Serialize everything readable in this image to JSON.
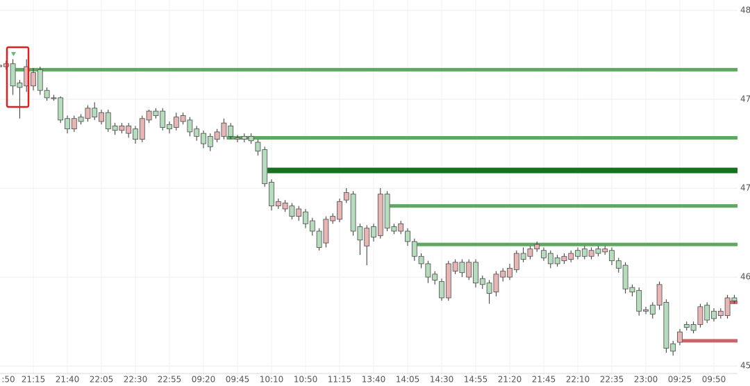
{
  "chart_data": {
    "type": "candlestick",
    "categories": [
      ":50",
      null,
      null,
      null,
      null,
      "21:15",
      null,
      null,
      null,
      null,
      "21:40",
      null,
      null,
      null,
      null,
      "22:05",
      null,
      null,
      null,
      null,
      "22:30",
      null,
      null,
      null,
      null,
      "22:55",
      null,
      null,
      null,
      null,
      "09:20",
      null,
      null,
      null,
      null,
      "09:45",
      null,
      null,
      null,
      null,
      "10:10",
      null,
      null,
      null,
      null,
      "10:50",
      null,
      null,
      null,
      null,
      "11:15",
      null,
      null,
      null,
      null,
      "13:40",
      null,
      null,
      null,
      null,
      "14:05",
      null,
      null,
      null,
      null,
      "14:30",
      null,
      null,
      null,
      null,
      "14:55",
      null,
      null,
      null,
      null,
      "21:20",
      null,
      null,
      null,
      null,
      "21:45",
      null,
      null,
      null,
      null,
      "22:10",
      null,
      null,
      null,
      null,
      "22:35",
      null,
      null,
      null,
      null,
      "23:00",
      null,
      null,
      null,
      null,
      "09:25",
      null,
      null,
      null,
      null,
      "09:50",
      null,
      null,
      null
    ],
    "open": [
      4782,
      4784,
      4769,
      4768,
      4782,
      4778,
      4766,
      4761,
      4761,
      4746,
      4740,
      4747,
      4745,
      4754,
      4748,
      4751,
      4740,
      4739,
      4742,
      4742,
      4733,
      4747,
      4752,
      4749,
      4741,
      4740,
      4748,
      4749,
      4738,
      4735,
      4730,
      4728,
      4738,
      4744,
      4735,
      4734,
      4733,
      4732,
      4725,
      4703,
      4688,
      4691,
      4690,
      4681,
      4686,
      4676,
      4671,
      4660,
      4679,
      4681,
      4691,
      4697,
      4671,
      4665,
      4673,
      4667,
      4696,
      4673,
      4671,
      4676,
      4664,
      4654,
      4649,
      4640,
      4638,
      4626,
      4649,
      4650,
      4643,
      4650,
      4636,
      4635,
      4629,
      4642,
      4644,
      4646,
      4656,
      4652,
      4659,
      4662,
      4653,
      4649,
      4649,
      4654,
      4656,
      4654,
      4654,
      4658,
      4656,
      4659,
      4651,
      4646,
      4632,
      4630,
      4617,
      4618,
      4615,
      4635,
      4592,
      4590,
      4603,
      4606,
      4604,
      4620,
      4611,
      4612,
      4617,
      4626,
      4624
    ],
    "high": [
      4785,
      4786,
      4787,
      4773,
      4787,
      4781,
      4782,
      4768,
      4763,
      4762,
      4749,
      4749,
      4750,
      4756,
      4758,
      4753,
      4753,
      4744,
      4744,
      4744,
      4742,
      4749,
      4753,
      4754,
      4754,
      4745,
      4751,
      4751,
      4748,
      4742,
      4739,
      4737,
      4740,
      4747,
      4744,
      4736,
      4737,
      4737,
      4733,
      4728,
      4706,
      4693,
      4692,
      4690,
      4688,
      4686,
      4680,
      4673,
      4681,
      4683,
      4693,
      4700,
      4698,
      4676,
      4675,
      4676,
      4700,
      4698,
      4676,
      4678,
      4673,
      4666,
      4656,
      4651,
      4644,
      4639,
      4651,
      4652,
      4652,
      4652,
      4652,
      4641,
      4638,
      4644,
      4646,
      4649,
      4658,
      4660,
      4661,
      4664,
      4660,
      4658,
      4655,
      4656,
      4658,
      4660,
      4661,
      4660,
      4661,
      4661,
      4660,
      4653,
      4650,
      4635,
      4633,
      4620,
      4623,
      4637,
      4625,
      4597,
      4605,
      4610,
      4610,
      4622,
      4623,
      4619,
      4619,
      4628,
      4628
    ],
    "low": [
      4781,
      4780,
      4763,
      4747,
      4765,
      4766,
      4763,
      4759,
      4759,
      4744,
      4737,
      4738,
      4743,
      4745,
      4746,
      4743,
      4738,
      4736,
      4737,
      4734,
      4730,
      4731,
      4744,
      4747,
      4739,
      4737,
      4739,
      4743,
      4735,
      4732,
      4727,
      4725,
      4731,
      4733,
      4733,
      4731,
      4731,
      4730,
      4722,
      4701,
      4685,
      4686,
      4684,
      4679,
      4678,
      4673,
      4668,
      4658,
      4660,
      4676,
      4677,
      4690,
      4668,
      4655,
      4648,
      4664,
      4666,
      4671,
      4669,
      4669,
      4661,
      4651,
      4646,
      4636,
      4635,
      4624,
      4624,
      4642,
      4640,
      4638,
      4633,
      4632,
      4622,
      4627,
      4637,
      4638,
      4643,
      4650,
      4652,
      4657,
      4651,
      4646,
      4647,
      4649,
      4650,
      4652,
      4652,
      4652,
      4654,
      4655,
      4648,
      4643,
      4629,
      4627,
      4614,
      4615,
      4612,
      4618,
      4589,
      4587,
      4594,
      4604,
      4602,
      4606,
      4609,
      4610,
      4612,
      4612,
      4622
    ],
    "close": [
      4783,
      4782,
      4784,
      4771,
      4769,
      4769,
      4780,
      4766,
      4761,
      4761,
      4747,
      4740,
      4748,
      4747,
      4754,
      4745,
      4751,
      4742,
      4739,
      4737,
      4740,
      4733,
      4746,
      4752,
      4752,
      4743,
      4741,
      4745,
      4746,
      4740,
      4737,
      4735,
      4733,
      4735,
      4742,
      4733,
      4735,
      4735,
      4731,
      4726,
      4704,
      4688,
      4686,
      4688,
      4681,
      4684,
      4678,
      4671,
      4663,
      4678,
      4679,
      4692,
      4696,
      4674,
      4661,
      4674,
      4668,
      4696,
      4674,
      4671,
      4671,
      4664,
      4654,
      4649,
      4642,
      4637,
      4626,
      4644,
      4650,
      4640,
      4650,
      4639,
      4636,
      4630,
      4640,
      4640,
      4645,
      4656,
      4654,
      4659,
      4658,
      4656,
      4653,
      4651,
      4652,
      4658,
      4659,
      4654,
      4659,
      4657,
      4658,
      4651,
      4648,
      4633,
      4631,
      4617,
      4621,
      4621,
      4623,
      4595,
      4596,
      4608,
      4608,
      4608,
      4621,
      4617,
      4614,
      4614,
      4626
    ],
    "up_color": "#b5dcbd",
    "down_color": "#e8b5b5",
    "levels": [
      {
        "value": 4780,
        "start": 2,
        "color": "#5ea862"
      },
      {
        "value": 4734,
        "start": 33,
        "color": "#5ea862"
      },
      {
        "value": 4712,
        "start": 39,
        "color": "#17721f"
      },
      {
        "value": 4688,
        "start": 57,
        "color": "#5ea862"
      },
      {
        "value": 4662,
        "start": 61,
        "color": "#5ea862"
      },
      {
        "value": 4597,
        "start": 100,
        "color": "#c9646b"
      },
      {
        "value": 4623,
        "start": 107,
        "color": "#c9646b"
      }
    ],
    "ylim": [
      4574,
      4827
    ],
    "yticks": [
      {
        "value": 4820,
        "label": "48"
      },
      {
        "value": 4760,
        "label": "47"
      },
      {
        "value": 4700,
        "label": "47("
      },
      {
        "value": 4640,
        "label": "46"
      },
      {
        "value": 4580,
        "label": "45"
      }
    ],
    "grid": true
  }
}
